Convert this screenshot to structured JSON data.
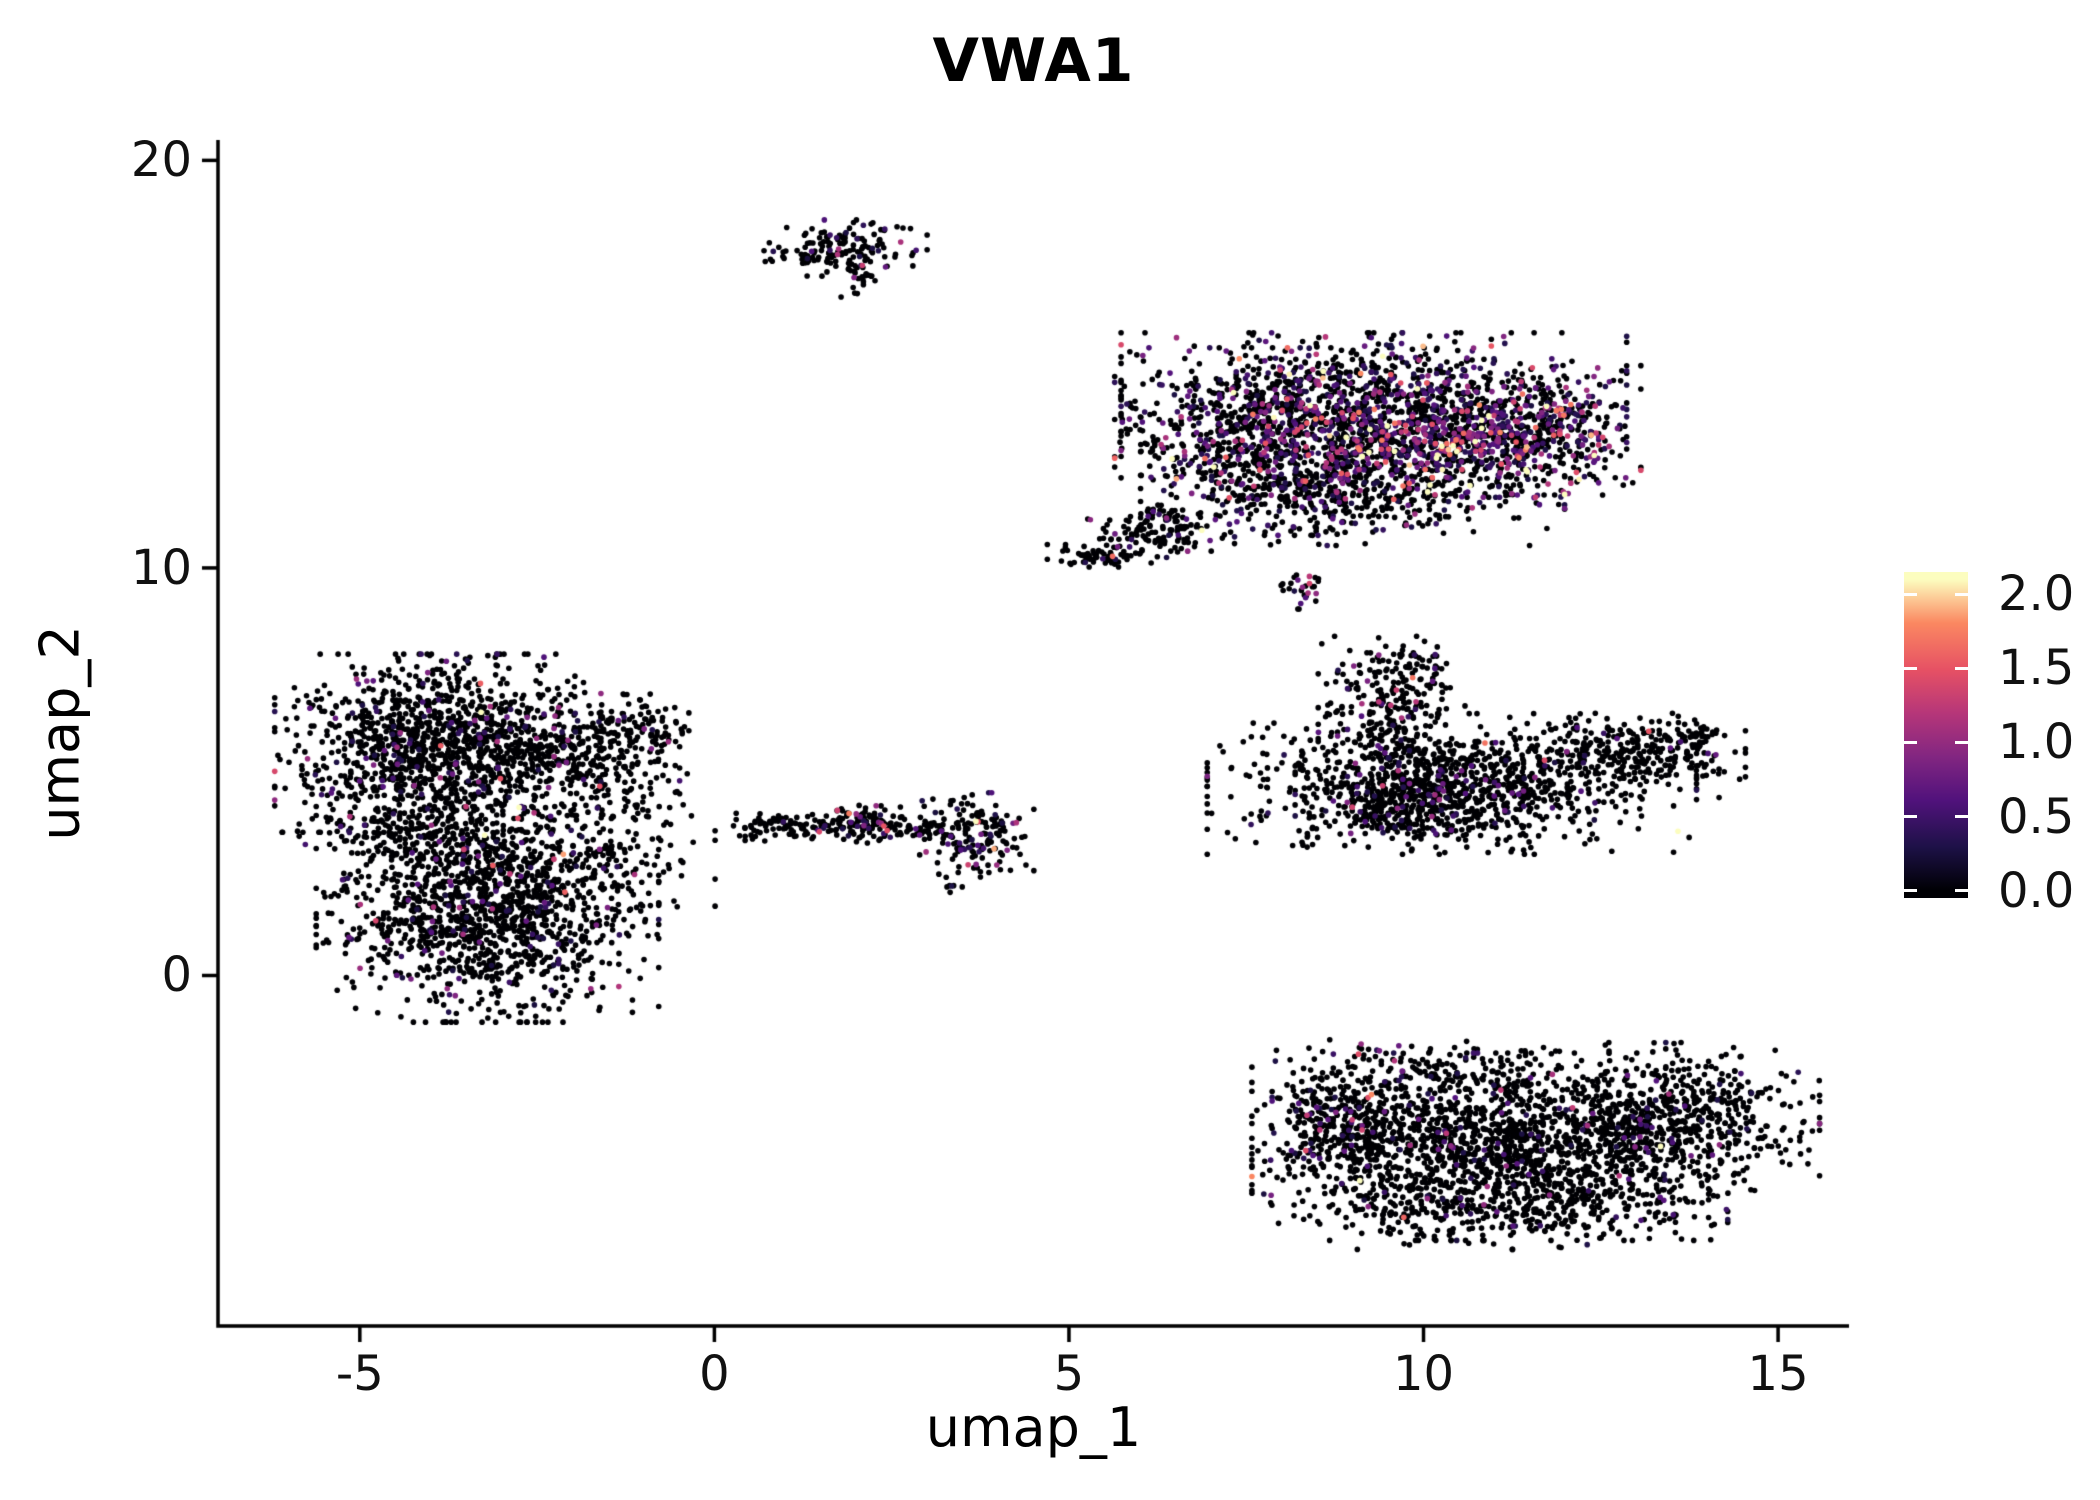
{
  "page": {
    "background": "#ffffff"
  },
  "chart_data": {
    "type": "scatter",
    "title": "VWA1",
    "xlabel": "umap_1",
    "ylabel": "umap_2",
    "xlim": [
      -7.0,
      16.0
    ],
    "ylim": [
      -8.6,
      20.5
    ],
    "x_ticks": [
      -5,
      0,
      5,
      10,
      15
    ],
    "y_ticks": [
      0,
      10,
      20
    ],
    "grid": false,
    "legend_position": "right",
    "seed": 42,
    "point_radius_px": 2.8,
    "axis_color": "#000000",
    "colorbar": {
      "vmin": 0.0,
      "vmax": 2.1,
      "bar_value_range": [
        -0.05,
        2.15
      ],
      "colormap": "magma",
      "ticks": [
        {
          "v": 0.0,
          "label": "0.0"
        },
        {
          "v": 0.5,
          "label": "0.5"
        },
        {
          "v": 1.0,
          "label": "1.0"
        },
        {
          "v": 1.5,
          "label": "1.5"
        },
        {
          "v": 2.0,
          "label": "2.0"
        }
      ],
      "stops": [
        {
          "t": 0.0,
          "color": "#000004"
        },
        {
          "t": 0.14,
          "color": "#1d1147"
        },
        {
          "t": 0.29,
          "color": "#51127c"
        },
        {
          "t": 0.43,
          "color": "#822681"
        },
        {
          "t": 0.57,
          "color": "#b63679"
        },
        {
          "t": 0.71,
          "color": "#e65164"
        },
        {
          "t": 0.86,
          "color": "#fb8861"
        },
        {
          "t": 1.0,
          "color": "#fcfdbf"
        }
      ]
    },
    "clusters": [
      {
        "name": "top-small",
        "blobs": [
          {
            "cx": 1.85,
            "cy": 17.85,
            "sx": 0.5,
            "sy": 0.3,
            "n": 150,
            "expr_frac": 0.18,
            "expr_scale": 0.45
          },
          {
            "cx": 2.05,
            "cy": 17.15,
            "sx": 0.12,
            "sy": 0.28,
            "n": 25,
            "expr_frac": 0.1,
            "expr_scale": 0.4
          }
        ]
      },
      {
        "name": "top-right-high-expression",
        "blobs": [
          {
            "cx": 9.3,
            "cy": 13.7,
            "sx": 1.55,
            "sy": 0.9,
            "n": 1500,
            "expr_frac": 0.3,
            "expr_scale": 0.5
          },
          {
            "cx": 7.6,
            "cy": 13.1,
            "sx": 0.85,
            "sy": 1.0,
            "n": 500,
            "expr_frac": 0.28,
            "expr_scale": 0.45
          },
          {
            "cx": 10.4,
            "cy": 13.0,
            "sx": 0.9,
            "sy": 0.55,
            "n": 420,
            "expr_frac": 0.55,
            "expr_scale": 0.7
          },
          {
            "cx": 9.0,
            "cy": 11.7,
            "sx": 1.3,
            "sy": 0.5,
            "n": 350,
            "expr_frac": 0.22,
            "expr_scale": 0.45
          },
          {
            "cx": 11.8,
            "cy": 13.4,
            "sx": 0.55,
            "sy": 0.7,
            "n": 250,
            "expr_frac": 0.3,
            "expr_scale": 0.55
          },
          {
            "cx": 6.3,
            "cy": 10.9,
            "sx": 0.45,
            "sy": 0.28,
            "n": 120,
            "expr_frac": 0.15,
            "expr_scale": 0.4
          },
          {
            "cx": 5.5,
            "cy": 10.3,
            "sx": 0.35,
            "sy": 0.12,
            "n": 70,
            "expr_frac": 0.08,
            "expr_scale": 0.35
          },
          {
            "cx": 8.3,
            "cy": 9.5,
            "sx": 0.14,
            "sy": 0.22,
            "n": 28,
            "expr_frac": 0.4,
            "expr_scale": 0.55
          }
        ]
      },
      {
        "name": "left",
        "blobs": [
          {
            "cx": -3.9,
            "cy": 5.7,
            "sx": 1.0,
            "sy": 0.95,
            "n": 1200,
            "expr_frac": 0.09,
            "expr_scale": 0.4
          },
          {
            "cx": -2.1,
            "cy": 5.4,
            "sx": 0.7,
            "sy": 0.65,
            "n": 300,
            "expr_frac": 0.08,
            "expr_scale": 0.4
          },
          {
            "cx": -1.05,
            "cy": 6.1,
            "sx": 0.3,
            "sy": 0.35,
            "n": 80,
            "expr_frac": 0.08,
            "expr_scale": 0.35
          },
          {
            "cx": -3.2,
            "cy": 1.5,
            "sx": 1.05,
            "sy": 1.15,
            "n": 1300,
            "expr_frac": 0.08,
            "expr_scale": 0.4
          },
          {
            "cx": -3.9,
            "cy": 3.5,
            "sx": 0.85,
            "sy": 0.5,
            "n": 250,
            "expr_frac": 0.08,
            "expr_scale": 0.4
          },
          {
            "cx": -1.6,
            "cy": 2.7,
            "sx": 0.7,
            "sy": 0.75,
            "n": 120,
            "expr_frac": 0.06,
            "expr_scale": 0.35
          },
          {
            "cx": -1.2,
            "cy": 4.4,
            "sx": 0.5,
            "sy": 0.7,
            "n": 45,
            "expr_frac": 0.05,
            "expr_scale": 0.3
          }
        ]
      },
      {
        "name": "middle-band",
        "blobs": [
          {
            "cx": 0.6,
            "cy": 3.55,
            "sx": 0.18,
            "sy": 0.12,
            "n": 20,
            "expr_frac": 0.05,
            "expr_scale": 0.3
          },
          {
            "cx": 1.35,
            "cy": 3.7,
            "sx": 0.55,
            "sy": 0.15,
            "n": 90,
            "expr_frac": 0.07,
            "expr_scale": 0.35
          },
          {
            "cx": 2.15,
            "cy": 3.75,
            "sx": 0.3,
            "sy": 0.24,
            "n": 95,
            "expr_frac": 0.12,
            "expr_scale": 0.4
          },
          {
            "cx": 2.85,
            "cy": 3.6,
            "sx": 0.3,
            "sy": 0.15,
            "n": 40,
            "expr_frac": 0.05,
            "expr_scale": 0.35
          },
          {
            "cx": 3.7,
            "cy": 3.45,
            "sx": 0.35,
            "sy": 0.45,
            "n": 160,
            "expr_frac": 0.16,
            "expr_scale": 0.45
          },
          {
            "cx": 3.35,
            "cy": 2.25,
            "sx": 0.12,
            "sy": 0.12,
            "n": 8,
            "expr_frac": 0.2,
            "expr_scale": 0.45
          }
        ]
      },
      {
        "name": "right-middle",
        "blobs": [
          {
            "cx": 10.4,
            "cy": 4.7,
            "sx": 1.5,
            "sy": 0.75,
            "n": 850,
            "expr_frac": 0.07,
            "expr_scale": 0.4
          },
          {
            "cx": 9.8,
            "cy": 4.3,
            "sx": 0.7,
            "sy": 0.5,
            "n": 350,
            "expr_frac": 0.12,
            "expr_scale": 0.45
          },
          {
            "cx": 9.55,
            "cy": 6.6,
            "sx": 0.45,
            "sy": 0.75,
            "n": 220,
            "expr_frac": 0.12,
            "expr_scale": 0.45
          },
          {
            "cx": 9.9,
            "cy": 7.6,
            "sx": 0.3,
            "sy": 0.3,
            "n": 40,
            "expr_frac": 0.1,
            "expr_scale": 0.4
          },
          {
            "cx": 12.7,
            "cy": 5.4,
            "sx": 0.8,
            "sy": 0.45,
            "n": 280,
            "expr_frac": 0.06,
            "expr_scale": 0.35
          },
          {
            "cx": 13.9,
            "cy": 5.85,
            "sx": 0.25,
            "sy": 0.2,
            "n": 40,
            "expr_frac": 0.05,
            "expr_scale": 0.35
          }
        ]
      },
      {
        "name": "bottom-right",
        "blobs": [
          {
            "cx": 10.8,
            "cy": -4.2,
            "sx": 1.4,
            "sy": 1.0,
            "n": 1400,
            "expr_frac": 0.05,
            "expr_scale": 0.4
          },
          {
            "cx": 13.4,
            "cy": -3.6,
            "sx": 0.95,
            "sy": 0.85,
            "n": 700,
            "expr_frac": 0.06,
            "expr_scale": 0.4
          },
          {
            "cx": 8.9,
            "cy": -3.6,
            "sx": 0.45,
            "sy": 0.9,
            "n": 280,
            "expr_frac": 0.12,
            "expr_scale": 0.45
          },
          {
            "cx": 11.3,
            "cy": -5.8,
            "sx": 1.3,
            "sy": 0.4,
            "n": 250,
            "expr_frac": 0.04,
            "expr_scale": 0.35
          },
          {
            "cx": 10.3,
            "cy": -2.3,
            "sx": 0.8,
            "sy": 0.35,
            "n": 120,
            "expr_frac": 0.08,
            "expr_scale": 0.45
          },
          {
            "cx": 9.35,
            "cy": -1.85,
            "sx": 0.1,
            "sy": 0.1,
            "n": 5,
            "expr_frac": 0.6,
            "expr_scale": 0.7
          }
        ]
      }
    ]
  }
}
